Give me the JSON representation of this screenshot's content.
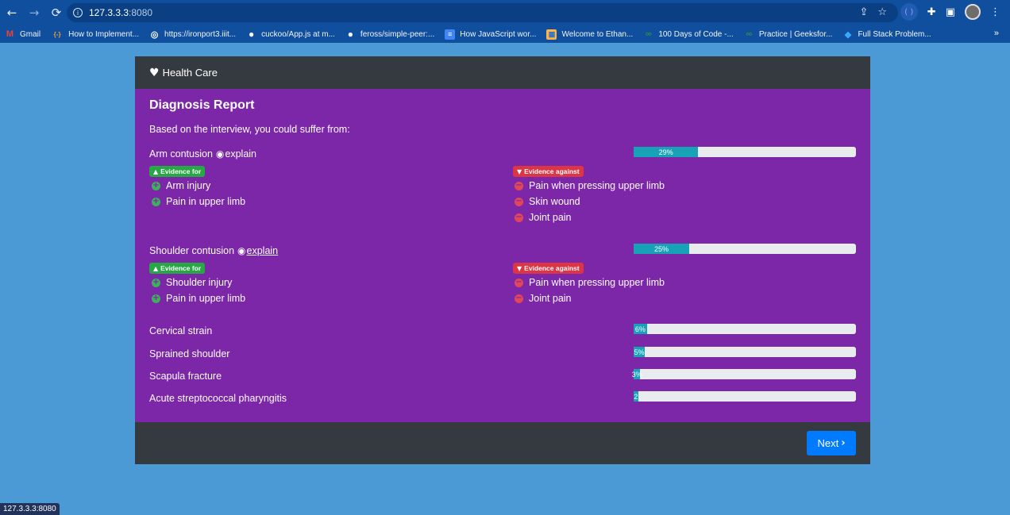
{
  "browser": {
    "url_host": "127.3.3.3",
    "url_port": ":8080",
    "bookmarks": [
      {
        "label": "Gmail",
        "icon": "gmail-icon"
      },
      {
        "label": "How to Implement...",
        "icon": "bracket-icon"
      },
      {
        "label": "https://ironport3.iiit...",
        "icon": "globe-icon"
      },
      {
        "label": "cuckoo/App.js at m...",
        "icon": "github-icon"
      },
      {
        "label": "feross/simple-peer:...",
        "icon": "github-icon"
      },
      {
        "label": "How JavaScript wor...",
        "icon": "doc-icon"
      },
      {
        "label": "Welcome to Ethan...",
        "icon": "image-icon"
      },
      {
        "label": "100 Days of Code -...",
        "icon": "gfg-icon"
      },
      {
        "label": "Practice | Geeksfor...",
        "icon": "gfg-icon"
      },
      {
        "label": "Full Stack Problem...",
        "icon": "diamond-icon"
      }
    ],
    "more": "»",
    "status_url": "127.3.3.3:8080"
  },
  "app": {
    "brand": "Health Care",
    "report_title": "Diagnosis Report",
    "intro": "Based on the interview, you could suffer from:",
    "explain_label": "explain",
    "evidence_for_label": "Evidence for",
    "evidence_against_label": "Evidence against",
    "next_label": "Next",
    "conditions": [
      {
        "name": "Arm contusion",
        "probability": 29,
        "percent_label": "29%",
        "evidence_for": [
          "Arm injury",
          "Pain in upper limb"
        ],
        "evidence_against": [
          "Pain when pressing upper limb",
          "Skin wound",
          "Joint pain"
        ]
      },
      {
        "name": "Shoulder contusion",
        "probability": 25,
        "percent_label": "25%",
        "evidence_for": [
          "Shoulder injury",
          "Pain in upper limb"
        ],
        "evidence_against": [
          "Pain when pressing upper limb",
          "Joint pain"
        ]
      },
      {
        "name": "Cervical strain",
        "probability": 6,
        "percent_label": "6%"
      },
      {
        "name": "Sprained shoulder",
        "probability": 5,
        "percent_label": "5%"
      },
      {
        "name": "Scapula fracture",
        "probability": 3,
        "percent_label": "3%"
      },
      {
        "name": "Acute streptococcal pharyngitis",
        "probability": 2,
        "percent_label": "2"
      }
    ]
  },
  "colors": {
    "body_bg": "#4b9ad6",
    "card_dark": "#343a40",
    "card_purple": "#7b27a8",
    "progress_fill": "#17a2b8",
    "badge_for": "#28a745",
    "badge_against": "#dc3545",
    "primary": "#007bff"
  }
}
